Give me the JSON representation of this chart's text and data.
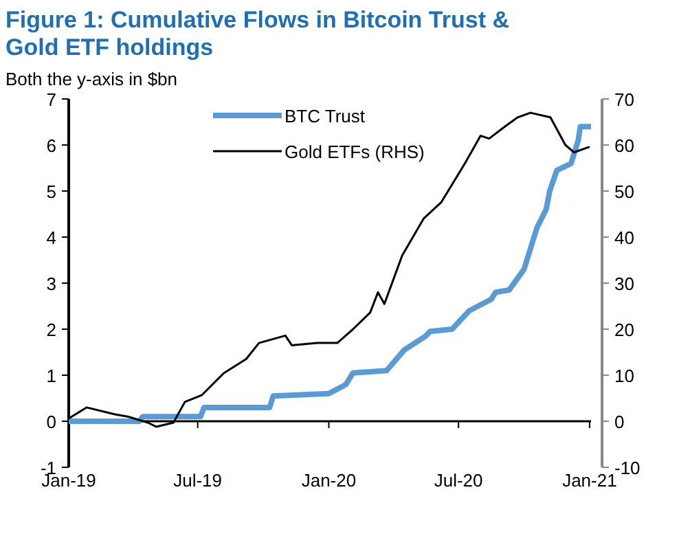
{
  "chart_data": {
    "type": "line",
    "title": "Figure 1: Cumulative Flows in Bitcoin Trust & Gold ETF holdings",
    "subtitle": "Both the y-axis in $bn",
    "xlim": [
      "2019-01-01",
      "2021-01-03"
    ],
    "xticks": [
      {
        "value": "2019-01-01",
        "label": "Jan-19"
      },
      {
        "value": "2019-07-01",
        "label": "Jul-19"
      },
      {
        "value": "2020-01-01",
        "label": "Jan-20"
      },
      {
        "value": "2020-07-01",
        "label": "Jul-20"
      },
      {
        "value": "2021-01-01",
        "label": "Jan-21"
      }
    ],
    "ylim": [
      -1,
      7
    ],
    "yticks": [
      -1,
      0,
      1,
      2,
      3,
      4,
      5,
      6,
      7
    ],
    "y2lim": [
      -10,
      70
    ],
    "y2ticks": [
      -10,
      0,
      10,
      20,
      30,
      40,
      50,
      60,
      70
    ],
    "legend": "top left",
    "series": [
      {
        "name": "BTC Trust",
        "color": "#5b9bd5",
        "x": [
          "2019-01-01",
          "2019-04-10",
          "2019-04-15",
          "2019-07-05",
          "2019-07-10",
          "2019-10-10",
          "2019-10-15",
          "2020-01-01",
          "2020-01-25",
          "2020-02-04",
          "2020-03-22",
          "2020-04-16",
          "2020-05-16",
          "2020-05-22",
          "2020-06-22",
          "2020-07-16",
          "2020-08-16",
          "2020-08-22",
          "2020-09-10",
          "2020-10-01",
          "2020-10-19",
          "2020-11-01",
          "2020-11-06",
          "2020-11-16",
          "2020-12-06",
          "2020-12-16",
          "2020-12-19",
          "2021-01-03"
        ],
        "values": [
          0,
          0,
          0.1,
          0.1,
          0.3,
          0.3,
          0.55,
          0.6,
          0.8,
          1.05,
          1.1,
          1.55,
          1.85,
          1.95,
          2.0,
          2.4,
          2.65,
          2.8,
          2.85,
          3.3,
          4.2,
          4.6,
          5.0,
          5.45,
          5.6,
          6.1,
          6.4,
          6.4
        ]
      },
      {
        "name": "Gold ETFs (RHS)",
        "color": "#000000",
        "axis": "y2",
        "x": [
          "2019-01-01",
          "2019-01-26",
          "2019-03-07",
          "2019-03-25",
          "2019-04-22",
          "2019-05-04",
          "2019-05-28",
          "2019-06-13",
          "2019-07-07",
          "2019-08-07",
          "2019-09-07",
          "2019-09-25",
          "2019-11-01",
          "2019-11-10",
          "2019-12-16",
          "2020-01-13",
          "2020-02-04",
          "2020-02-28",
          "2020-03-10",
          "2020-03-19",
          "2020-04-13",
          "2020-05-13",
          "2020-06-07",
          "2020-07-10",
          "2020-08-01",
          "2020-08-13",
          "2020-09-04",
          "2020-09-22",
          "2020-10-10",
          "2020-11-07",
          "2020-11-28",
          "2020-12-10",
          "2021-01-01"
        ],
        "values": [
          0.6,
          3,
          1.5,
          1,
          -0.3,
          -1.2,
          -0.3,
          4.2,
          5.7,
          10.5,
          13.5,
          17,
          18.6,
          16.5,
          17,
          17,
          20,
          23.6,
          28,
          25.5,
          36,
          44,
          47.6,
          56,
          62,
          61.4,
          64,
          66,
          67,
          66,
          60,
          58.4,
          59.6
        ]
      }
    ]
  }
}
